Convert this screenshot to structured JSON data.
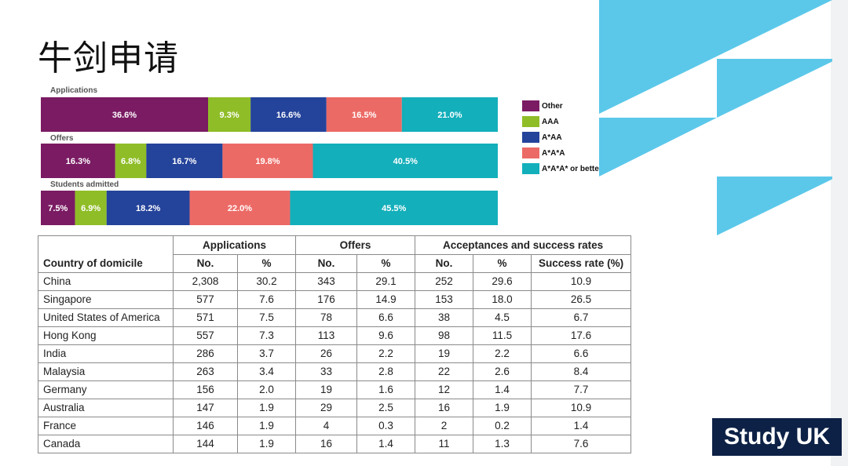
{
  "page": {
    "title": "牛剑申请"
  },
  "logo": {
    "text": "Study UK",
    "bg_color": "#0d2146"
  },
  "colors": {
    "Other": "#7a1b63",
    "AAA": "#8fbd27",
    "A*AA": "#24439a",
    "A*A*A": "#ec6a66",
    "A*A*A* or better": "#13afbb",
    "decor": "#5bc8ea"
  },
  "chart_data": {
    "type": "bar",
    "orientation": "horizontal",
    "stacked": "percent",
    "categories": [
      "Applications",
      "Offers",
      "Students admitted"
    ],
    "series": [
      {
        "name": "Other",
        "values": [
          36.6,
          16.3,
          7.5
        ]
      },
      {
        "name": "AAA",
        "values": [
          9.3,
          6.8,
          6.9
        ]
      },
      {
        "name": "A*AA",
        "values": [
          16.6,
          16.7,
          18.2
        ]
      },
      {
        "name": "A*A*A",
        "values": [
          16.5,
          19.8,
          22.0
        ]
      },
      {
        "name": "A*A*A* or better",
        "values": [
          21.0,
          40.5,
          45.5
        ]
      }
    ],
    "legend": {
      "placement": "right"
    },
    "data_labels": true,
    "grid": false,
    "xlim": [
      0,
      100
    ]
  },
  "table": {
    "country_header": "Country of domicile",
    "groups": [
      "Applications",
      "Offers",
      "Acceptances and success rates"
    ],
    "subheaders": [
      "No.",
      "%",
      "No.",
      "%",
      "No.",
      "%",
      "Success rate (%)"
    ],
    "rows": [
      {
        "country": "China",
        "cells": [
          "2,308",
          "30.2",
          "343",
          "29.1",
          "252",
          "29.6",
          "10.9"
        ]
      },
      {
        "country": "Singapore",
        "cells": [
          "577",
          "7.6",
          "176",
          "14.9",
          "153",
          "18.0",
          "26.5"
        ]
      },
      {
        "country": "United States of America",
        "cells": [
          "571",
          "7.5",
          "78",
          "6.6",
          "38",
          "4.5",
          "6.7"
        ]
      },
      {
        "country": "Hong Kong",
        "cells": [
          "557",
          "7.3",
          "113",
          "9.6",
          "98",
          "11.5",
          "17.6"
        ]
      },
      {
        "country": "India",
        "cells": [
          "286",
          "3.7",
          "26",
          "2.2",
          "19",
          "2.2",
          "6.6"
        ]
      },
      {
        "country": "Malaysia",
        "cells": [
          "263",
          "3.4",
          "33",
          "2.8",
          "22",
          "2.6",
          "8.4"
        ]
      },
      {
        "country": "Germany",
        "cells": [
          "156",
          "2.0",
          "19",
          "1.6",
          "12",
          "1.4",
          "7.7"
        ]
      },
      {
        "country": "Australia",
        "cells": [
          "147",
          "1.9",
          "29",
          "2.5",
          "16",
          "1.9",
          "10.9"
        ]
      },
      {
        "country": "France",
        "cells": [
          "146",
          "1.9",
          "4",
          "0.3",
          "2",
          "0.2",
          "1.4"
        ]
      },
      {
        "country": "Canada",
        "cells": [
          "144",
          "1.9",
          "16",
          "1.4",
          "11",
          "1.3",
          "7.6"
        ]
      }
    ]
  }
}
